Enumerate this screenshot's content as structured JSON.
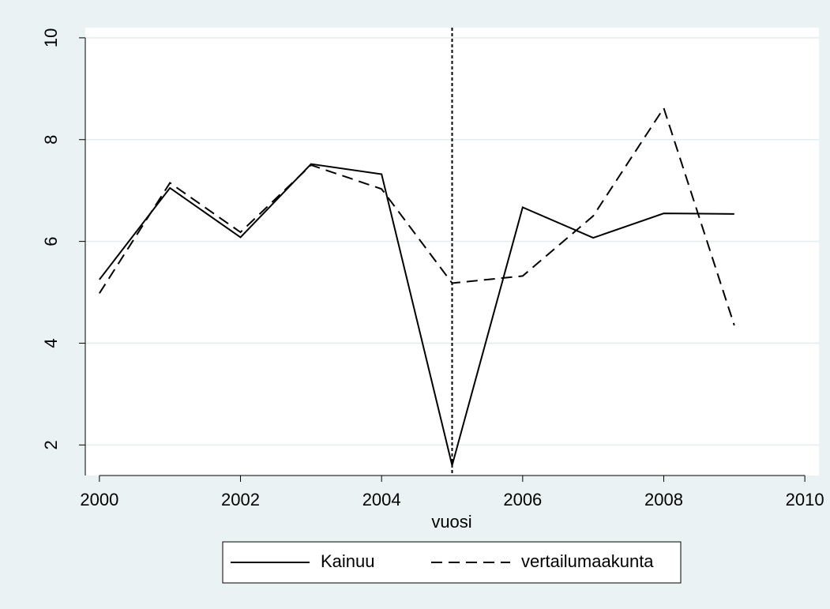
{
  "chart_data": {
    "type": "line",
    "x": [
      2000,
      2001,
      2002,
      2003,
      2004,
      2005,
      2006,
      2007,
      2008,
      2009
    ],
    "series": [
      {
        "name": "Kainuu",
        "color": "#000000",
        "dash": "solid",
        "values": [
          5.25,
          7.05,
          6.08,
          7.52,
          7.32,
          1.6,
          6.67,
          6.07,
          6.55,
          6.54
        ]
      },
      {
        "name": "vertailumaakunta",
        "color": "#000000",
        "dash": "dashed",
        "values": [
          4.98,
          7.15,
          6.18,
          7.5,
          7.03,
          5.18,
          5.32,
          6.5,
          8.62,
          4.35
        ]
      }
    ],
    "x_label": "vuosi",
    "xlim": [
      1999.8,
      2010.2
    ],
    "xticks": [
      2000,
      2002,
      2004,
      2006,
      2008,
      2010
    ],
    "ylim": [
      1.4,
      10.2
    ],
    "yticks": [
      2,
      4,
      6,
      8,
      10
    ],
    "vline": 2005,
    "grid": true,
    "legend": "bottom"
  }
}
